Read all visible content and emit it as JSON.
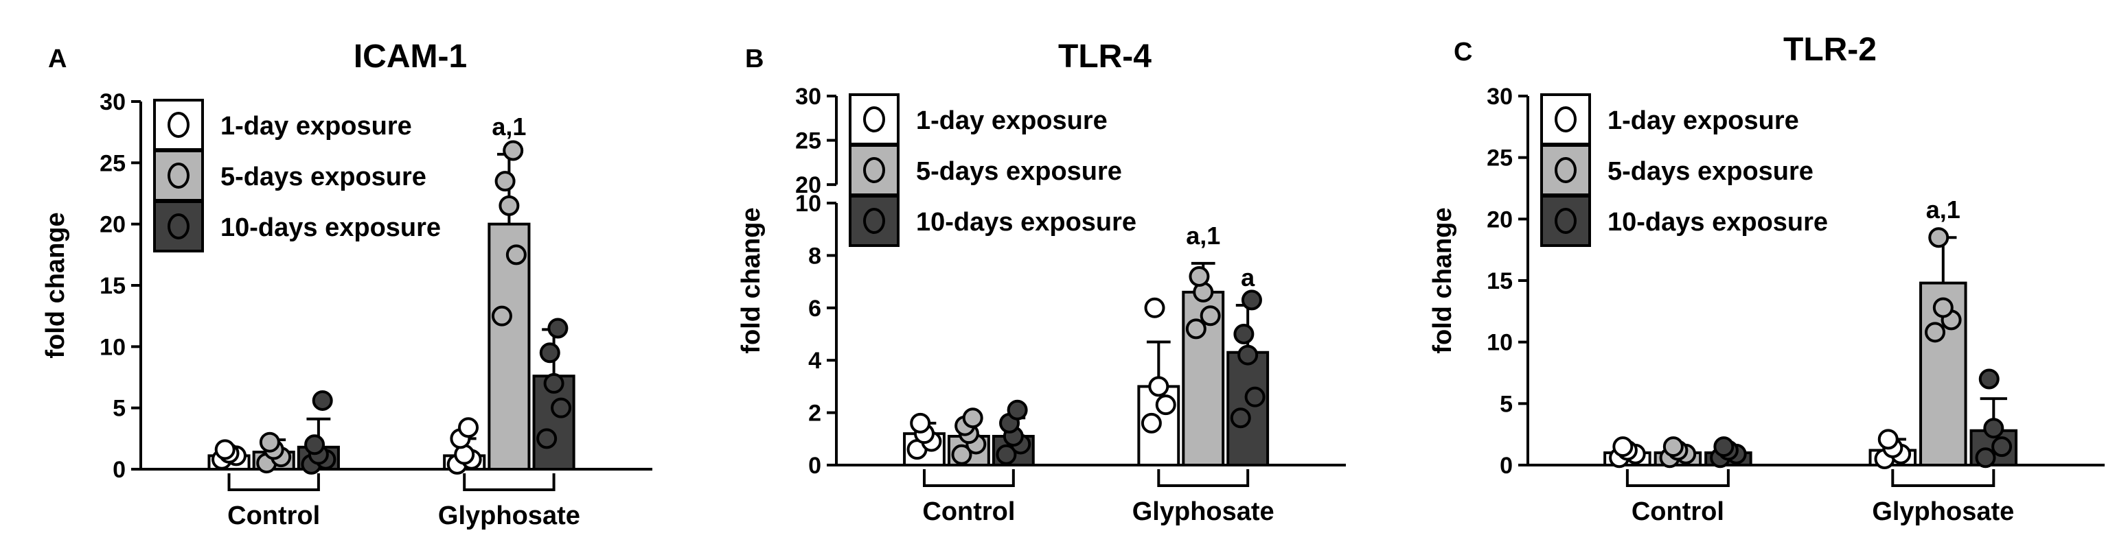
{
  "colors": {
    "series": [
      "#ffffff",
      "#b5b5b5",
      "#404040"
    ],
    "axis": "#000000"
  },
  "chart_data": [
    {
      "type": "bar",
      "panel_letter": "A",
      "title": "ICAM-1",
      "ylabel": "fold change",
      "ylim": [
        0,
        30
      ],
      "yticks": [
        0,
        5,
        10,
        15,
        20,
        25,
        30
      ],
      "groups": [
        "Control",
        "Glyphosate"
      ],
      "series": [
        {
          "name": "1-day exposure",
          "values": [
            1.1,
            1.1
          ],
          "errors": [
            0.4,
            1.4
          ],
          "points": [
            [
              0.8,
              1.1,
              1.3,
              1.6
            ],
            [
              0.4,
              0.8,
              1.2,
              2.5,
              3.4
            ]
          ],
          "annotations": [
            "",
            ""
          ]
        },
        {
          "name": "5-days exposure",
          "values": [
            1.4,
            20.0
          ],
          "errors": [
            1.0,
            5.7
          ],
          "points": [
            [
              0.5,
              1.0,
              1.6,
              2.2
            ],
            [
              12.5,
              17.5,
              21.5,
              23.5,
              26.0
            ]
          ],
          "annotations": [
            "",
            "a,1"
          ]
        },
        {
          "name": "10-days exposure",
          "values": [
            1.8,
            7.6
          ],
          "errors": [
            2.3,
            3.8
          ],
          "points": [
            [
              0.4,
              0.8,
              1.2,
              2.0,
              5.6
            ],
            [
              2.5,
              5.0,
              7.0,
              9.5,
              11.5
            ]
          ],
          "annotations": [
            "",
            ""
          ]
        }
      ]
    },
    {
      "type": "bar",
      "panel_letter": "B",
      "title": "TLR-4",
      "ylabel": "fold change",
      "broken_axis": true,
      "ylim": [
        0,
        30
      ],
      "break_at": 10,
      "yticks": [
        0,
        2,
        4,
        6,
        8,
        10,
        20,
        25,
        30
      ],
      "groups": [
        "Control",
        "Glyphosate"
      ],
      "series": [
        {
          "name": "1-day exposure",
          "values": [
            1.2,
            3.0
          ],
          "errors": [
            0.4,
            1.7
          ],
          "points": [
            [
              0.6,
              0.9,
              1.2,
              1.6
            ],
            [
              1.6,
              2.3,
              3.0,
              6.0
            ]
          ],
          "annotations": [
            "",
            ""
          ]
        },
        {
          "name": "5-days exposure",
          "values": [
            1.1,
            6.6
          ],
          "errors": [
            0.5,
            1.1
          ],
          "points": [
            [
              0.4,
              0.8,
              1.2,
              1.5,
              1.8
            ],
            [
              5.2,
              5.7,
              6.6,
              7.2
            ]
          ],
          "annotations": [
            "",
            "a,1"
          ]
        },
        {
          "name": "10-days exposure",
          "values": [
            1.1,
            4.3
          ],
          "errors": [
            0.7,
            1.8
          ],
          "points": [
            [
              0.4,
              0.8,
              1.1,
              1.6,
              2.1
            ],
            [
              1.8,
              2.6,
              4.2,
              5.0,
              6.3
            ]
          ],
          "annotations": [
            "",
            "a"
          ]
        }
      ]
    },
    {
      "type": "bar",
      "panel_letter": "C",
      "title": "TLR-2",
      "ylabel": "fold change",
      "ylim": [
        0,
        30
      ],
      "yticks": [
        0,
        5,
        10,
        15,
        20,
        25,
        30
      ],
      "groups": [
        "Control",
        "Glyphosate"
      ],
      "series": [
        {
          "name": "1-day exposure",
          "values": [
            1.0,
            1.2
          ],
          "errors": [
            0.4,
            0.9
          ],
          "points": [
            [
              0.6,
              0.9,
              1.2,
              1.5
            ],
            [
              0.5,
              0.9,
              1.4,
              2.1
            ]
          ],
          "annotations": [
            "",
            ""
          ]
        },
        {
          "name": "5-days exposure",
          "values": [
            1.0,
            14.8
          ],
          "errors": [
            0.4,
            3.7
          ],
          "points": [
            [
              0.6,
              0.9,
              1.2,
              1.5
            ],
            [
              10.8,
              11.8,
              12.8,
              18.5
            ]
          ],
          "annotations": [
            "",
            "a,1"
          ]
        },
        {
          "name": "10-days exposure",
          "values": [
            1.0,
            2.8
          ],
          "errors": [
            0.4,
            2.6
          ],
          "points": [
            [
              0.6,
              0.9,
              1.2,
              1.5
            ],
            [
              0.6,
              1.5,
              3.0,
              7.0
            ]
          ],
          "annotations": [
            "",
            ""
          ]
        }
      ]
    }
  ]
}
